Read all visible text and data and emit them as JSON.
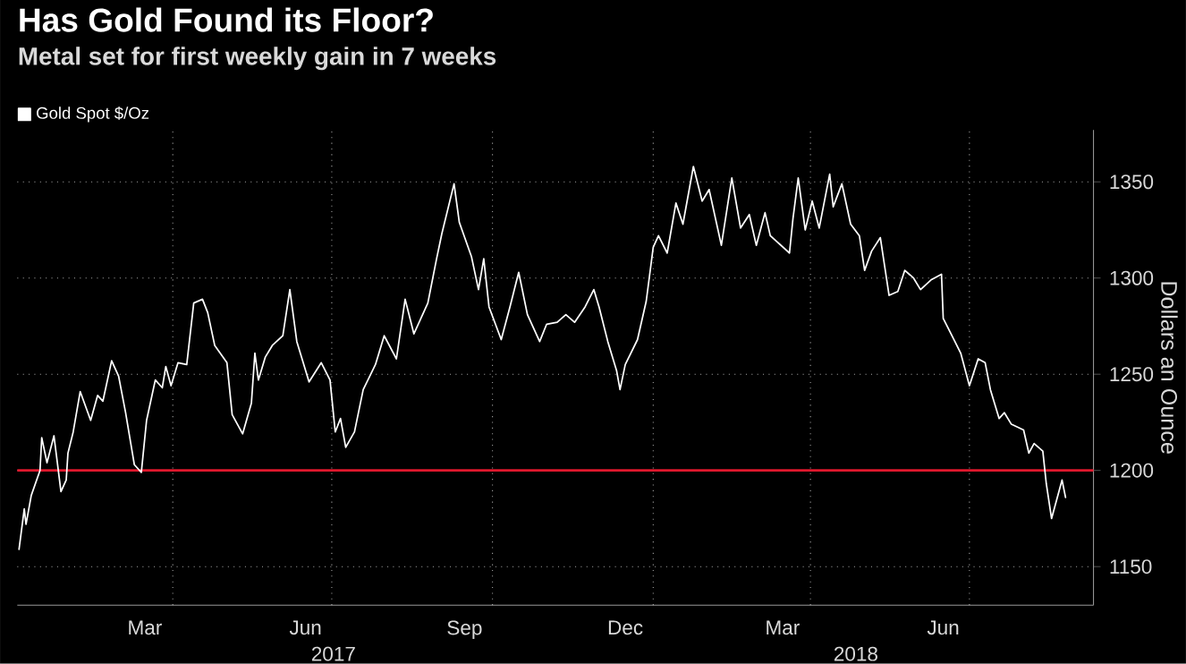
{
  "chart_data": {
    "type": "line",
    "title": "Has Gold Found its Floor?",
    "subtitle": "Metal set for first weekly gain in 7 weeks",
    "ylabel": "Dollars an Ounce",
    "x": [
      "2017-01-03",
      "2017-01-06",
      "2017-01-07",
      "2017-01-10",
      "2017-01-15",
      "2017-01-16",
      "2017-01-19",
      "2017-01-23",
      "2017-01-27",
      "2017-01-30",
      "2017-01-31",
      "2017-02-03",
      "2017-02-07",
      "2017-02-13",
      "2017-02-17",
      "2017-02-20",
      "2017-02-25",
      "2017-03-01",
      "2017-03-05",
      "2017-03-10",
      "2017-03-14",
      "2017-03-17",
      "2017-03-22",
      "2017-03-26",
      "2017-03-28",
      "2017-03-31",
      "2017-04-04",
      "2017-04-09",
      "2017-04-13",
      "2017-04-18",
      "2017-04-21",
      "2017-04-25",
      "2017-05-02",
      "2017-05-05",
      "2017-05-11",
      "2017-05-16",
      "2017-05-18",
      "2017-05-20",
      "2017-05-24",
      "2017-05-28",
      "2017-06-03",
      "2017-06-07",
      "2017-06-11",
      "2017-06-18",
      "2017-06-25",
      "2017-06-30",
      "2017-07-03",
      "2017-07-06",
      "2017-07-09",
      "2017-07-14",
      "2017-07-19",
      "2017-07-26",
      "2017-07-31",
      "2017-08-07",
      "2017-08-12",
      "2017-08-17",
      "2017-08-25",
      "2017-08-30",
      "2017-09-02",
      "2017-09-09",
      "2017-09-12",
      "2017-09-19",
      "2017-09-23",
      "2017-09-26",
      "2017-09-29",
      "2017-10-06",
      "2017-10-11",
      "2017-10-16",
      "2017-10-21",
      "2017-10-28",
      "2017-11-01",
      "2017-11-07",
      "2017-11-12",
      "2017-11-17",
      "2017-11-23",
      "2017-11-28",
      "2017-12-01",
      "2017-12-06",
      "2017-12-11",
      "2017-12-13",
      "2017-12-16",
      "2017-12-23",
      "2017-12-28",
      "2018-01-01",
      "2018-01-04",
      "2018-01-09",
      "2018-01-14",
      "2018-01-18",
      "2018-01-24",
      "2018-01-29",
      "2018-02-02",
      "2018-02-09",
      "2018-02-15",
      "2018-02-20",
      "2018-02-25",
      "2018-03-01",
      "2018-03-06",
      "2018-03-09",
      "2018-03-20",
      "2018-03-22",
      "2018-03-25",
      "2018-03-29",
      "2018-04-02",
      "2018-04-06",
      "2018-04-12",
      "2018-04-14",
      "2018-04-19",
      "2018-04-24",
      "2018-04-29",
      "2018-05-02",
      "2018-05-06",
      "2018-05-11",
      "2018-05-16",
      "2018-05-21",
      "2018-05-25",
      "2018-05-30",
      "2018-06-03",
      "2018-06-09",
      "2018-06-15",
      "2018-06-16",
      "2018-06-21",
      "2018-06-26",
      "2018-07-01",
      "2018-07-06",
      "2018-07-10",
      "2018-07-13",
      "2018-07-18",
      "2018-07-21",
      "2018-07-25",
      "2018-08-01",
      "2018-08-04",
      "2018-08-07",
      "2018-08-12",
      "2018-08-14",
      "2018-08-17",
      "2018-08-23",
      "2018-08-25"
    ],
    "series": [
      {
        "name": "Gold Spot $/Oz",
        "color": "#ffffff",
        "values": [
          1159,
          1180,
          1172,
          1187,
          1200,
          1217,
          1204,
          1218,
          1189,
          1195,
          1209,
          1220,
          1241,
          1226,
          1239,
          1236,
          1257,
          1249,
          1230,
          1203,
          1199,
          1226,
          1247,
          1243,
          1254,
          1244,
          1256,
          1255,
          1287,
          1289,
          1282,
          1265,
          1256,
          1229,
          1219,
          1235,
          1261,
          1247,
          1259,
          1265,
          1270,
          1294,
          1267,
          1246,
          1256,
          1247,
          1220,
          1227,
          1212,
          1220,
          1242,
          1255,
          1270,
          1258,
          1289,
          1271,
          1287,
          1310,
          1323,
          1349,
          1329,
          1311,
          1294,
          1310,
          1285,
          1268,
          1285,
          1303,
          1281,
          1267,
          1276,
          1277,
          1281,
          1277,
          1285,
          1294,
          1285,
          1267,
          1252,
          1242,
          1255,
          1268,
          1288,
          1316,
          1322,
          1313,
          1339,
          1328,
          1358,
          1340,
          1346,
          1317,
          1352,
          1326,
          1333,
          1317,
          1334,
          1322,
          1313,
          1331,
          1352,
          1325,
          1340,
          1326,
          1354,
          1337,
          1349,
          1328,
          1322,
          1304,
          1314,
          1321,
          1291,
          1293,
          1304,
          1300,
          1294,
          1299,
          1302,
          1279,
          1270,
          1261,
          1244,
          1258,
          1256,
          1242,
          1227,
          1230,
          1224,
          1221,
          1209,
          1214,
          1210,
          1193,
          1175,
          1195,
          1186
        ]
      }
    ],
    "xlim": [
      "2017-01-02",
      "2018-09-10"
    ],
    "ylim": [
      1130,
      1377
    ],
    "xticks": [
      {
        "value": "2017-03-16",
        "label": "Mar"
      },
      {
        "value": "2017-06-16",
        "label": "Jun"
      },
      {
        "value": "2017-09-15",
        "label": "Sep"
      },
      {
        "value": "2017-12-16",
        "label": "Dec"
      },
      {
        "value": "2018-03-16",
        "label": "Mar"
      },
      {
        "value": "2018-06-16",
        "label": "Jun"
      },
      {
        "value": "2017-04-01",
        "label": null
      },
      {
        "value": "2017-07-01",
        "label": null
      },
      {
        "value": "2017-10-01",
        "label": null
      },
      {
        "value": "2018-01-01",
        "label": null
      },
      {
        "value": "2018-04-01",
        "label": null
      },
      {
        "value": "2018-07-01",
        "label": null
      }
    ],
    "x2lim": [
      "2017-01-02",
      "2018-09-10"
    ],
    "x2ticks": [
      {
        "value": "2017-07-02",
        "label": "2017"
      },
      {
        "value": "2018-04-27",
        "label": "2018"
      }
    ],
    "yticks": [
      1150,
      1200,
      1250,
      1300,
      1350
    ],
    "ref_lines": [
      {
        "axis": "y",
        "value": 1200,
        "color": "#e0182d"
      }
    ],
    "grid": true,
    "legend": "top left"
  }
}
